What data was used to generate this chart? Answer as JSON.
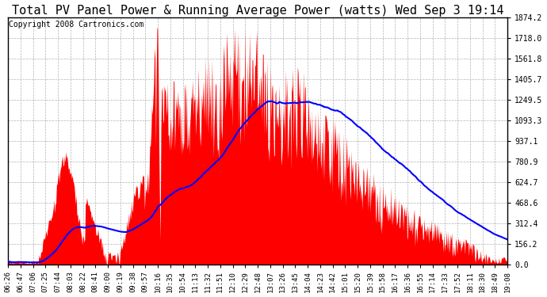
{
  "title": "Total PV Panel Power & Running Average Power (watts) Wed Sep 3 19:14",
  "copyright": "Copyright 2008 Cartronics.com",
  "y_max": 1874.2,
  "y_ticks": [
    0.0,
    156.2,
    312.4,
    468.6,
    624.7,
    780.9,
    937.1,
    1093.3,
    1249.5,
    1405.7,
    1561.8,
    1718.0,
    1874.2
  ],
  "x_labels": [
    "06:26",
    "06:47",
    "07:06",
    "07:25",
    "07:44",
    "08:03",
    "08:22",
    "08:41",
    "09:00",
    "09:19",
    "09:38",
    "09:57",
    "10:16",
    "10:35",
    "10:54",
    "11:13",
    "11:32",
    "11:51",
    "12:10",
    "12:29",
    "12:48",
    "13:07",
    "13:26",
    "13:45",
    "14:04",
    "14:23",
    "14:42",
    "15:01",
    "15:20",
    "15:39",
    "15:58",
    "16:17",
    "16:36",
    "16:55",
    "17:14",
    "17:33",
    "17:52",
    "18:11",
    "18:30",
    "18:49",
    "19:08"
  ],
  "bg_color": "#ffffff",
  "plot_bg": "#ffffff",
  "fill_color": "#ff0000",
  "line_color": "#0000ff",
  "grid_color": "#aaaaaa",
  "title_fontsize": 11,
  "copyright_fontsize": 7,
  "figwidth": 6.9,
  "figheight": 3.75,
  "dpi": 100
}
